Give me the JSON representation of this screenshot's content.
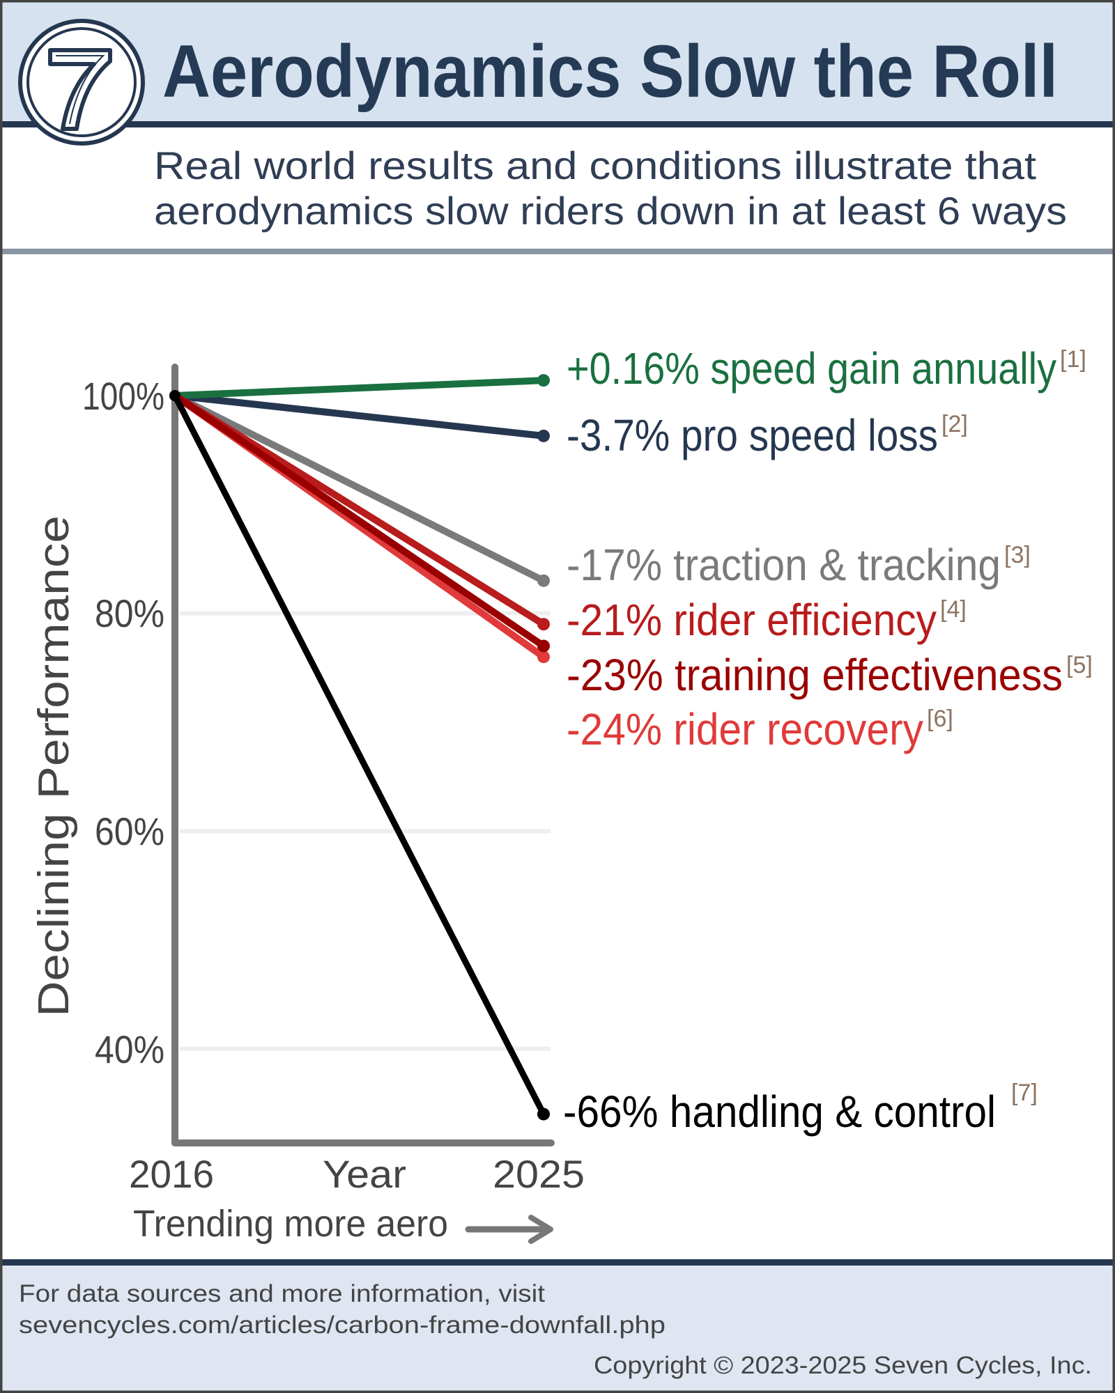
{
  "header": {
    "title": "Aerodynamics Slow the Roll",
    "logo_text": "7",
    "subtitle_line1": "Real world results and conditions illustrate that",
    "subtitle_line2": "aerodynamics slow riders down in at least 6 ways"
  },
  "chart_data": {
    "type": "line",
    "ylabel": "Declining Performance",
    "xlabel": "Year",
    "x_note": "Trending more aero",
    "x": [
      "2016",
      "2025"
    ],
    "yticks": [
      "100%",
      "80%",
      "60%",
      "40%"
    ],
    "ylim": [
      33,
      104
    ],
    "grid": true,
    "series": [
      {
        "label": "+0.16% speed gain annually",
        "ref": "[1]",
        "color": "#1a7040",
        "values": [
          100,
          101.4
        ]
      },
      {
        "label": "-3.7% pro speed loss",
        "ref": "[2]",
        "color": "#253750",
        "values": [
          100,
          96.3
        ]
      },
      {
        "label": "-17% traction & tracking",
        "ref": "[3]",
        "color": "#7a7a7a",
        "values": [
          100,
          83
        ]
      },
      {
        "label": "-21% rider efficiency",
        "ref": "[4]",
        "color": "#b81c1c",
        "values": [
          100,
          79
        ]
      },
      {
        "label": "-23% training effectiveness",
        "ref": "[5]",
        "color": "#9a0000",
        "values": [
          100,
          77
        ]
      },
      {
        "label": "-24% rider recovery",
        "ref": "[6]",
        "color": "#e03a3a",
        "values": [
          100,
          76
        ]
      },
      {
        "label": "-66% handling & control",
        "ref": "[7]",
        "color": "#000000",
        "values": [
          100,
          34
        ]
      }
    ]
  },
  "footer": {
    "line1": "For data sources and more information, visit",
    "line2": "sevencycles.com/articles/carbon-frame-downfall.php",
    "copyright": "Copyright © 2023-2025 Seven Cycles, Inc."
  },
  "colors": {
    "title": "#253a55",
    "header_bg": "#d6e2f0",
    "footer_bg": "#dfe6f2",
    "axis": "#777777"
  }
}
